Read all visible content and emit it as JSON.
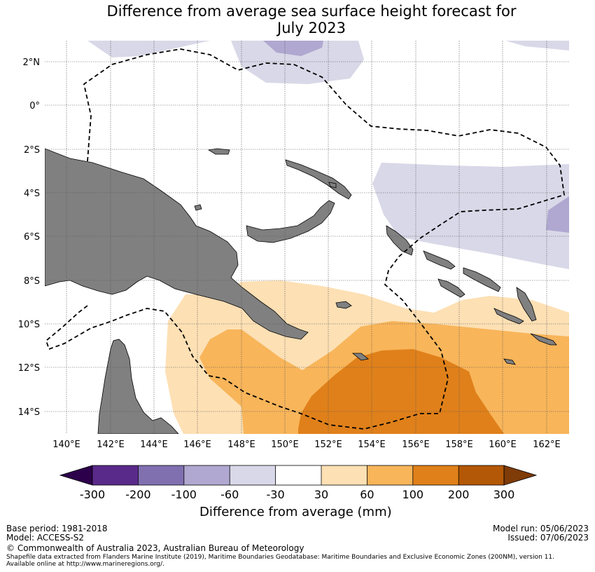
{
  "title_line1": "Difference from average sea surface height forecast for",
  "title_line2": "July 2023",
  "map": {
    "lat_labels": [
      "2°N",
      "0°",
      "2°S",
      "4°S",
      "6°S",
      "8°S",
      "10°S",
      "12°S",
      "14°S"
    ],
    "lon_labels": [
      "140°E",
      "142°E",
      "144°E",
      "146°E",
      "148°E",
      "150°E",
      "152°E",
      "154°E",
      "156°E",
      "158°E",
      "160°E",
      "162°E"
    ],
    "colors": {
      "land": "#808080",
      "neg30_60": "#d8d8e8",
      "neg60_100": "#b0a8d0",
      "pos30_60": "#fde0b4",
      "pos60_100": "#f8b55a",
      "pos100_200": "#e0801a"
    }
  },
  "colorbar": {
    "tick_labels": [
      "-300",
      "-200",
      "-100",
      "-60",
      "-30",
      "30",
      "60",
      "100",
      "200",
      "300"
    ],
    "colors": [
      "#2d004b",
      "#5a2a8a",
      "#8070b0",
      "#b0a8d0",
      "#d8d8e8",
      "#ffffff",
      "#fde0b4",
      "#f8b55a",
      "#e0801a",
      "#b35806",
      "#7f3b08"
    ],
    "label": "Difference from average (mm)"
  },
  "footer": {
    "base_period": "Base period: 1981-2018",
    "model": "Model: ACCESS-S2",
    "model_run": "Model run: 05/06/2023",
    "issued": "Issued: 07/06/2023",
    "copyright": "© Commonwealth of Australia 2023, Australian Bureau of Meteorology",
    "shapefile_line1": "Shapefile data extracted from Flanders Marine Institute (2019), Maritime Boundaries Geodatabase: Maritime Boundaries and Exclusive Economic Zones (200NM), version 11.",
    "shapefile_line2": "Available online at http://www.marineregions.org/."
  }
}
